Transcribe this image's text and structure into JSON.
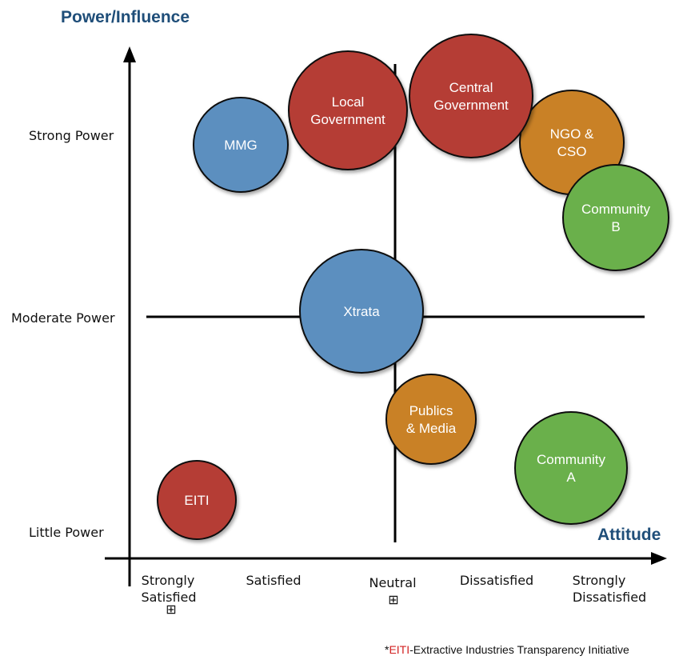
{
  "titles": {
    "y_axis": "Power/Influence",
    "x_axis": "Attitude"
  },
  "y_labels": {
    "strong": "Strong Power",
    "moderate": "Moderate Power",
    "little": "Little Power"
  },
  "x_labels": {
    "strongly_satisfied": [
      "Strongly",
      "Satisfied"
    ],
    "satisfied": "Satisfied",
    "neutral": "Neutral",
    "dissatisfied": "Dissatisfied",
    "strongly_dissatisfied": [
      "Strongly",
      "Dissatisfied"
    ],
    "marker_glyph": "⊞"
  },
  "colors": {
    "blue": "#5b8fbf",
    "red": "#b53c34",
    "orange": "#c98128",
    "green": "#6ab04c",
    "axis_title": "#1f4e79",
    "footnote_highlight": "#d21f1f"
  },
  "stakeholders": {
    "mmg": {
      "lines": [
        "MMG"
      ],
      "color": "blue"
    },
    "local_government": {
      "lines": [
        "Local",
        "Government"
      ],
      "color": "red"
    },
    "central_government": {
      "lines": [
        "Central",
        "Government"
      ],
      "color": "red"
    },
    "ngo_cso": {
      "lines": [
        "NGO &",
        "CSO"
      ],
      "color": "orange"
    },
    "community_b": {
      "lines": [
        "Community",
        "B"
      ],
      "color": "green"
    },
    "xtrata": {
      "lines": [
        "Xtrata"
      ],
      "color": "blue"
    },
    "publics_media": {
      "lines": [
        "Publics",
        "& Media"
      ],
      "color": "orange"
    },
    "community_a": {
      "lines": [
        "Community",
        "A"
      ],
      "color": "green"
    },
    "eiti": {
      "lines": [
        "EITI"
      ],
      "color": "red"
    }
  },
  "footnote": {
    "prefix": "*",
    "highlight": "EITI",
    "rest": "-Extractive Industries Transparency Initiative"
  }
}
